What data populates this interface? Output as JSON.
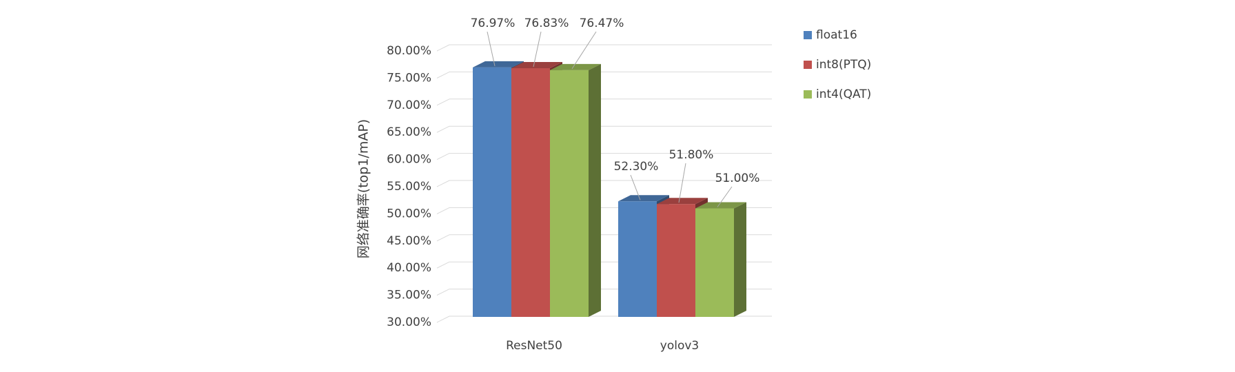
{
  "chart_data": {
    "type": "bar3d",
    "y_label": "网络准确率(top1/mAP)",
    "categories": [
      "ResNet50",
      "yolov3"
    ],
    "series": [
      {
        "name": "float16",
        "color": "#4f81bd",
        "values": [
          76.97,
          52.3
        ],
        "value_labels": [
          "76.97%",
          "52.30%"
        ]
      },
      {
        "name": "int8(PTQ)",
        "color": "#c0504d",
        "values": [
          76.83,
          51.8
        ],
        "value_labels": [
          "76.83%",
          "51.80%"
        ]
      },
      {
        "name": "int4(QAT)",
        "color": "#9bbb59",
        "values": [
          76.47,
          51.0
        ],
        "value_labels": [
          "76.47%",
          "51.00%"
        ]
      }
    ],
    "ylim": [
      30,
      80
    ],
    "yticks": [
      {
        "value": 30,
        "label": "30.00%"
      },
      {
        "value": 35,
        "label": "35.00%"
      },
      {
        "value": 40,
        "label": "40.00%"
      },
      {
        "value": 45,
        "label": "45.00%"
      },
      {
        "value": 50,
        "label": "50.00%"
      },
      {
        "value": 55,
        "label": "55.00%"
      },
      {
        "value": 60,
        "label": "60.00%"
      },
      {
        "value": 65,
        "label": "65.00%"
      },
      {
        "value": 70,
        "label": "70.00%"
      },
      {
        "value": 75,
        "label": "75.00%"
      },
      {
        "value": 80,
        "label": "80.00%"
      }
    ],
    "grid": true,
    "legend": "right"
  }
}
